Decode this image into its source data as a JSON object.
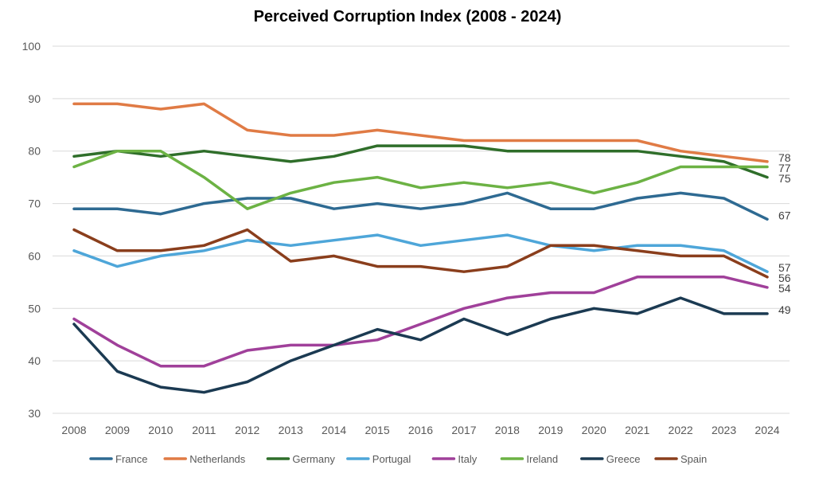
{
  "chart_data": {
    "type": "line",
    "title": "Perceived Corruption Index (2008 - 2024)",
    "xlabel": "",
    "ylabel": "",
    "x": [
      "2008",
      "2009",
      "2010",
      "2011",
      "2012",
      "2013",
      "2014",
      "2015",
      "2016",
      "2017",
      "2018",
      "2019",
      "2020",
      "2021",
      "2022",
      "2023",
      "2024"
    ],
    "ylim": [
      30,
      100
    ],
    "yticks": [
      "30",
      "40",
      "50",
      "60",
      "70",
      "80",
      "90",
      "100"
    ],
    "grid": true,
    "legend_position": "bottom",
    "series": [
      {
        "name": "France",
        "color": "#2e6a92",
        "end_label": "67",
        "values": [
          69,
          69,
          68,
          70,
          71,
          71,
          69,
          70,
          69,
          70,
          72,
          69,
          69,
          71,
          72,
          71,
          67
        ]
      },
      {
        "name": "Netherlands",
        "color": "#e07b45",
        "end_label": "78",
        "values": [
          89,
          89,
          88,
          89,
          84,
          83,
          83,
          84,
          83,
          82,
          82,
          82,
          82,
          82,
          80,
          79,
          78
        ]
      },
      {
        "name": "Germany",
        "color": "#2f6e2a",
        "end_label": "75",
        "values": [
          79,
          80,
          79,
          80,
          79,
          78,
          79,
          81,
          81,
          81,
          80,
          80,
          80,
          80,
          79,
          78,
          75
        ]
      },
      {
        "name": "Portugal",
        "color": "#4ea6d9",
        "end_label": "57",
        "values": [
          61,
          58,
          60,
          61,
          63,
          62,
          63,
          64,
          62,
          63,
          64,
          62,
          61,
          62,
          62,
          61,
          57
        ]
      },
      {
        "name": "Italy",
        "color": "#a0409a",
        "end_label": "54",
        "values": [
          48,
          43,
          39,
          39,
          42,
          43,
          43,
          44,
          47,
          50,
          52,
          53,
          53,
          56,
          56,
          56,
          54
        ]
      },
      {
        "name": "Ireland",
        "color": "#6cb244",
        "end_label": "77",
        "values": [
          77,
          80,
          80,
          75,
          69,
          72,
          74,
          75,
          73,
          74,
          73,
          74,
          72,
          74,
          77,
          77,
          77
        ]
      },
      {
        "name": "Greece",
        "color": "#1b3a52",
        "end_label": "49",
        "values": [
          47,
          38,
          35,
          34,
          36,
          40,
          43,
          46,
          44,
          48,
          45,
          48,
          50,
          49,
          52,
          49,
          49
        ]
      },
      {
        "name": "Spain",
        "color": "#8a3e1c",
        "end_label": "56",
        "values": [
          65,
          61,
          61,
          62,
          65,
          59,
          60,
          58,
          58,
          57,
          58,
          62,
          62,
          61,
          60,
          60,
          56
        ]
      }
    ]
  }
}
